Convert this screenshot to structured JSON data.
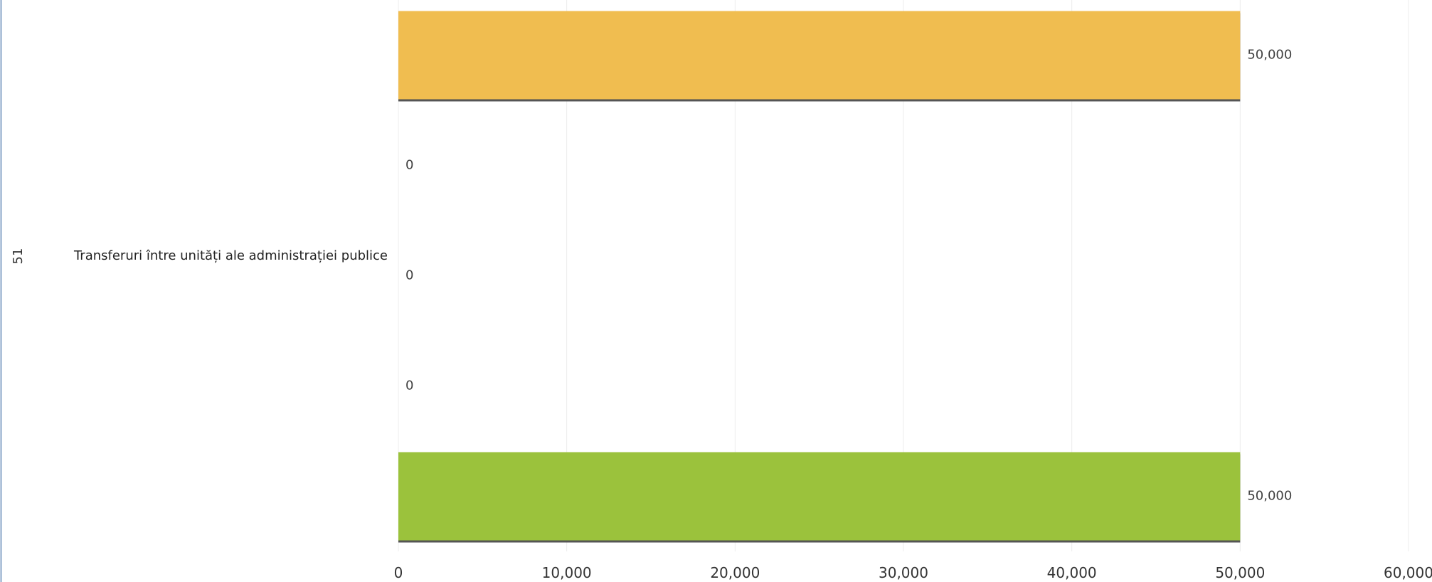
{
  "chart_data": {
    "type": "bar",
    "orientation": "horizontal",
    "category": {
      "code": "51",
      "label": "Transferuri între unități ale administrației publice"
    },
    "series": [
      {
        "value": 50000,
        "value_label": "50,000",
        "color": "#f0bd50"
      },
      {
        "value": 0,
        "value_label": "0",
        "color": "#f0bd50"
      },
      {
        "value": 0,
        "value_label": "0",
        "color": "#f0bd50"
      },
      {
        "value": 0,
        "value_label": "0",
        "color": "#9bc23c"
      },
      {
        "value": 50000,
        "value_label": "50,000",
        "color": "#9bc23c"
      }
    ],
    "xlim": [
      0,
      60000
    ],
    "ticks": [
      0,
      10000,
      20000,
      30000,
      40000,
      50000,
      60000
    ],
    "tick_labels": [
      "0",
      "10,000",
      "20,000",
      "30,000",
      "40,000",
      "50,000",
      "60,000"
    ],
    "grid": true,
    "legend": "none",
    "colors": {
      "grid": "#ececec",
      "axis_frame": "#8aa6c8",
      "bar_shadow": "#555555"
    }
  }
}
